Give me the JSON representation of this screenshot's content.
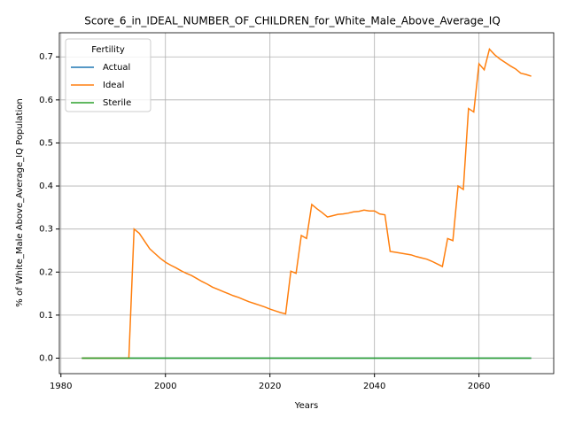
{
  "chart_data": {
    "type": "line",
    "title": "Score_6_in_IDEAL_NUMBER_OF_CHILDREN_for_White_Male_Above_Average_IQ",
    "xlabel": "Years",
    "ylabel": "% of White_Male Above_Average_IQ Population",
    "legend_title": "Fertility",
    "legend": "upper left",
    "grid": true,
    "x": [
      1984,
      1985,
      1986,
      1987,
      1988,
      1989,
      1990,
      1991,
      1992,
      1993,
      1994,
      1995,
      1996,
      1997,
      1998,
      1999,
      2000,
      2001,
      2002,
      2003,
      2004,
      2005,
      2006,
      2007,
      2008,
      2009,
      2010,
      2011,
      2012,
      2013,
      2014,
      2015,
      2016,
      2017,
      2018,
      2019,
      2020,
      2021,
      2022,
      2023,
      2024,
      2025,
      2026,
      2027,
      2028,
      2029,
      2030,
      2031,
      2032,
      2033,
      2034,
      2035,
      2036,
      2037,
      2038,
      2039,
      2040,
      2041,
      2042,
      2043,
      2044,
      2045,
      2046,
      2047,
      2048,
      2049,
      2050,
      2051,
      2052,
      2053,
      2054,
      2055,
      2056,
      2057,
      2058,
      2059,
      2060,
      2061,
      2062,
      2063,
      2064,
      2065,
      2066,
      2067,
      2068,
      2069,
      2070
    ],
    "series": [
      {
        "name": "Actual",
        "color": "#1f77b4",
        "values": [
          0,
          0,
          0,
          0,
          0,
          0,
          0,
          0,
          0,
          0,
          0,
          0,
          0,
          0,
          0,
          0,
          0,
          0,
          0,
          0,
          0,
          0,
          0,
          0,
          0,
          0,
          0,
          0,
          0,
          0,
          0,
          0,
          0,
          0,
          0,
          0,
          0,
          0,
          0,
          0,
          0,
          0,
          0,
          0,
          0,
          0,
          0,
          0,
          0,
          0,
          0,
          0,
          0,
          0,
          0,
          0,
          0,
          0,
          0,
          0,
          0,
          0,
          0,
          0,
          0,
          0,
          0,
          0,
          0,
          0,
          0,
          0,
          0,
          0,
          0,
          0,
          0,
          0,
          0,
          0,
          0,
          0,
          0,
          0,
          0,
          0,
          0
        ]
      },
      {
        "name": "Ideal",
        "color": "#ff7f0e",
        "values": [
          0,
          0,
          0,
          0,
          0,
          0,
          0,
          0,
          0,
          0,
          0.3,
          0.29,
          0.272,
          0.254,
          0.243,
          0.232,
          0.223,
          0.216,
          0.21,
          0.203,
          0.197,
          0.192,
          0.185,
          0.178,
          0.172,
          0.165,
          0.16,
          0.155,
          0.15,
          0.145,
          0.141,
          0.136,
          0.131,
          0.127,
          0.123,
          0.119,
          0.114,
          0.11,
          0.106,
          0.103,
          0.202,
          0.197,
          0.285,
          0.278,
          0.357,
          0.347,
          0.338,
          0.328,
          0.331,
          0.334,
          0.335,
          0.337,
          0.34,
          0.341,
          0.344,
          0.342,
          0.342,
          0.335,
          0.333,
          0.248,
          0.246,
          0.244,
          0.242,
          0.24,
          0.236,
          0.233,
          0.23,
          0.225,
          0.219,
          0.213,
          0.278,
          0.273,
          0.4,
          0.392,
          0.58,
          0.572,
          0.684,
          0.67,
          0.718,
          0.705,
          0.695,
          0.687,
          0.679,
          0.672,
          0.662,
          0.659,
          0.655
        ]
      },
      {
        "name": "Sterile",
        "color": "#2ca02c",
        "values": [
          0,
          0,
          0,
          0,
          0,
          0,
          0,
          0,
          0,
          0,
          0,
          0,
          0,
          0,
          0,
          0,
          0,
          0,
          0,
          0,
          0,
          0,
          0,
          0,
          0,
          0,
          0,
          0,
          0,
          0,
          0,
          0,
          0,
          0,
          0,
          0,
          0,
          0,
          0,
          0,
          0,
          0,
          0,
          0,
          0,
          0,
          0,
          0,
          0,
          0,
          0,
          0,
          0,
          0,
          0,
          0,
          0,
          0,
          0,
          0,
          0,
          0,
          0,
          0,
          0,
          0,
          0,
          0,
          0,
          0,
          0,
          0,
          0,
          0,
          0,
          0,
          0,
          0,
          0,
          0,
          0,
          0,
          0,
          0,
          0,
          0,
          0
        ]
      }
    ],
    "xlim": [
      1979.7,
      2074.3
    ],
    "xticks": [
      1980,
      2000,
      2020,
      2040,
      2060
    ],
    "ylim": [
      -0.036,
      0.756
    ],
    "yticks": [
      {
        "value": 0,
        "label": "0.0"
      },
      0.1,
      0.2,
      0.3,
      0.4,
      0.5,
      0.6,
      0.7
    ]
  }
}
